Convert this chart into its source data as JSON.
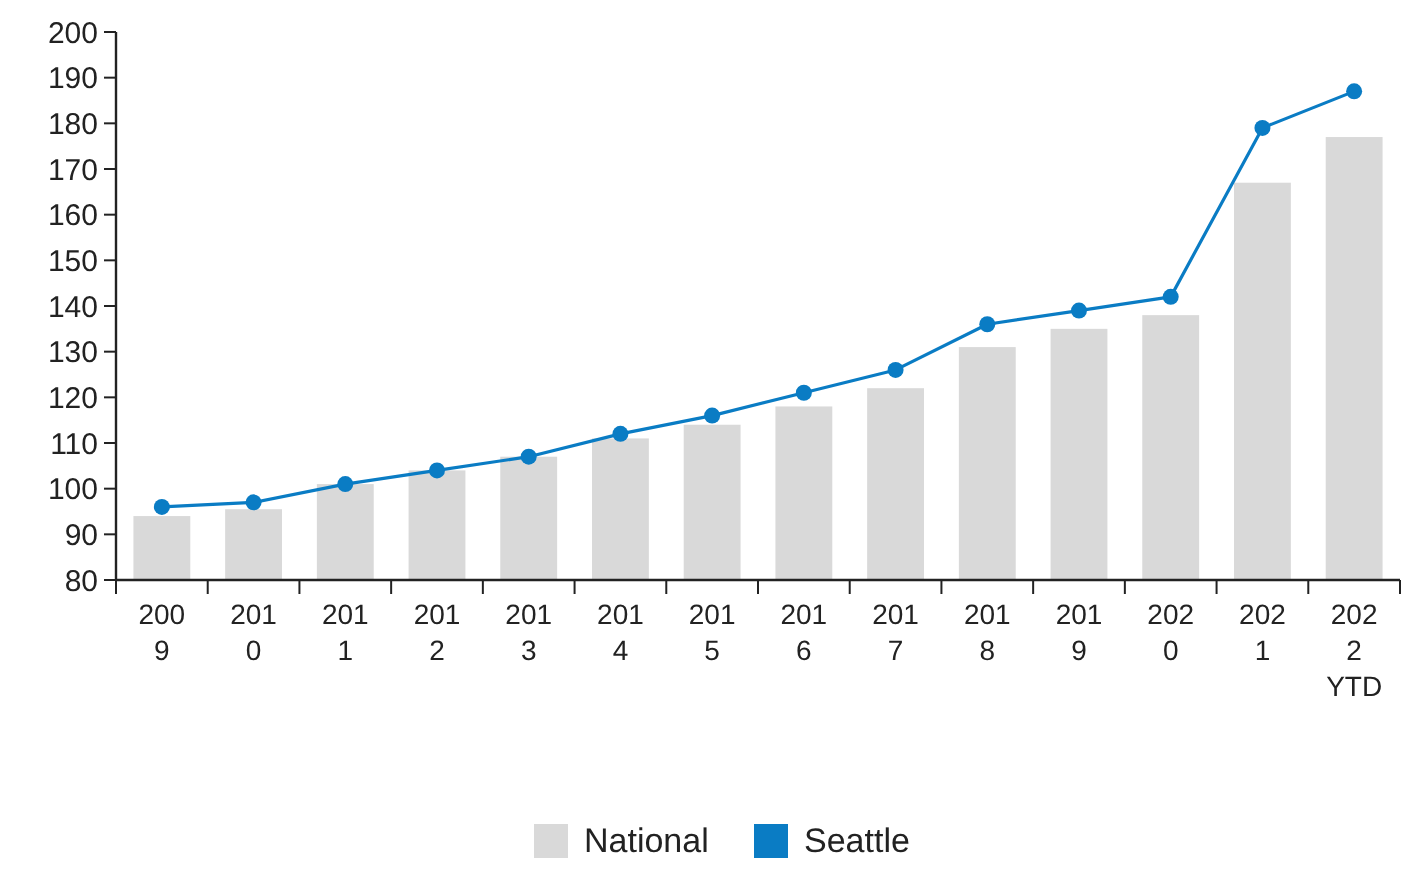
{
  "chart_data": {
    "type": "bar",
    "categories": [
      "2009",
      "2010",
      "2011",
      "2012",
      "2013",
      "2014",
      "2015",
      "2016",
      "2017",
      "2018",
      "2019",
      "2020",
      "2021",
      "2022 YTD"
    ],
    "series": [
      {
        "name": "National",
        "color": "#d9d9d9",
        "values": [
          94,
          95.5,
          101,
          104,
          107,
          111,
          114,
          118,
          122,
          131,
          135,
          138,
          167,
          177
        ]
      },
      {
        "name": "Seattle",
        "type": "line",
        "color": "#0a7cc4",
        "values": [
          96,
          97,
          101,
          104,
          107,
          112,
          116,
          121,
          126,
          136,
          139,
          142,
          179,
          187
        ]
      }
    ],
    "ylim": [
      80,
      200
    ],
    "yticks": [
      80,
      90,
      100,
      110,
      120,
      130,
      140,
      150,
      160,
      170,
      180,
      190,
      200
    ],
    "grid": false,
    "legend": "bottom",
    "marker": "circle",
    "line_style": "solid"
  }
}
